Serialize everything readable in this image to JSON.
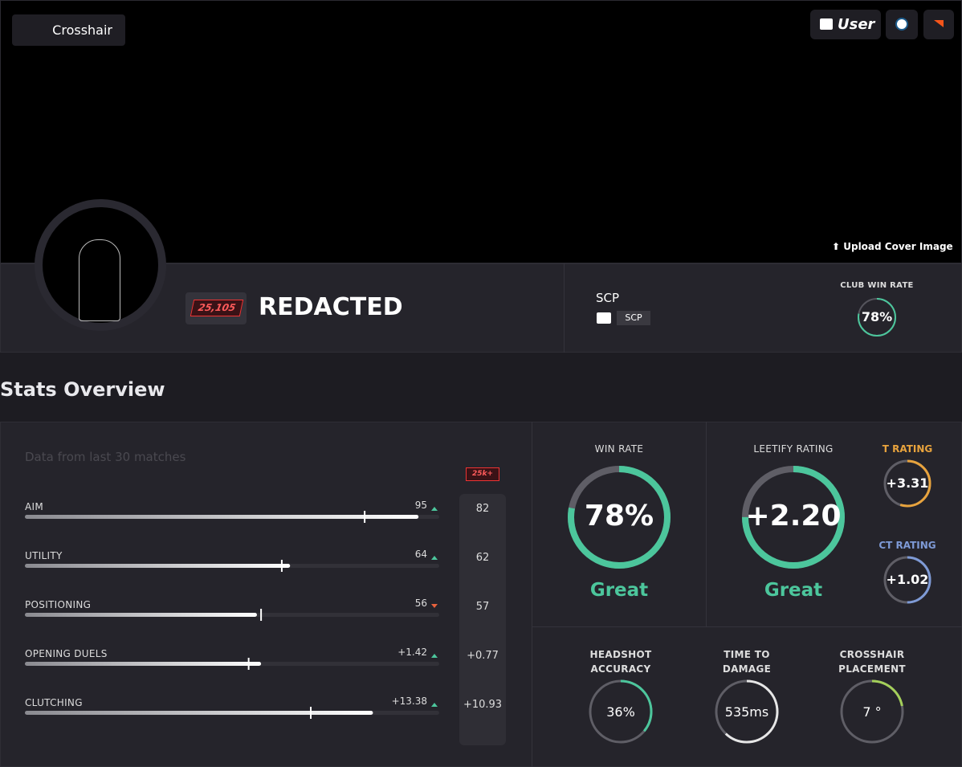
{
  "header": {
    "crosshair_button": "Crosshair",
    "user_button": "User",
    "upload_cover": "Upload Cover Image"
  },
  "profile": {
    "premier_rating": "25,105",
    "name": "REDACTED",
    "club": {
      "name": "SCP",
      "tag": "SCP",
      "win_rate_label": "CLUB WIN RATE",
      "win_rate": {
        "value": 78,
        "label": "78%"
      }
    }
  },
  "stats": {
    "title": "Stats Overview",
    "subtitle": "Data from last 30 matches",
    "benchmark_badge": "25k+",
    "rows": [
      {
        "label": "AIM",
        "value": 95,
        "trend": "up",
        "bar": 95,
        "benchmark": 82,
        "marker": 82
      },
      {
        "label": "UTILITY",
        "value": 64,
        "trend": "up",
        "bar": 64,
        "benchmark": 62,
        "marker": 62
      },
      {
        "label": "POSITIONING",
        "value": 56,
        "trend": "down",
        "bar": 56,
        "benchmark": 57,
        "marker": 57
      },
      {
        "label": "OPENING DUELS",
        "value": "+1.42",
        "trend": "up",
        "bar": 57,
        "benchmark": "+0.77",
        "marker": 54
      },
      {
        "label": "CLUTCHING",
        "value": "+13.38",
        "trend": "up",
        "bar": 84,
        "benchmark": "+10.93",
        "marker": 69
      }
    ],
    "win_rate": {
      "label": "WIN RATE",
      "value": 78,
      "value_label": "78%",
      "verdict": "Great",
      "color": "#4cc69c"
    },
    "leetify_rating": {
      "label": "LEETIFY RATING",
      "value_label": "+2.20",
      "ring": 75,
      "verdict": "Great",
      "color": "#4cc69c"
    },
    "t_rating": {
      "label": "T RATING",
      "value_label": "+3.31",
      "ring": 55,
      "color": "#e8a33d"
    },
    "ct_rating": {
      "label": "CT RATING",
      "value_label": "+1.02",
      "ring": 50,
      "color": "#7e9ad6"
    },
    "headshot_accuracy": {
      "label": "HEADSHOT ACCURACY",
      "value": 36,
      "value_label": "36%",
      "color": "#4cc69c"
    },
    "time_to_damage": {
      "label": "TIME TO DAMAGE",
      "value_label": "535ms",
      "ring": 62,
      "color": "#e6e6e6"
    },
    "crosshair_placement": {
      "label": "CROSSHAIR PLACEMENT",
      "value_label": "7 °",
      "ring": 22,
      "color": "#a4cf5a"
    }
  }
}
